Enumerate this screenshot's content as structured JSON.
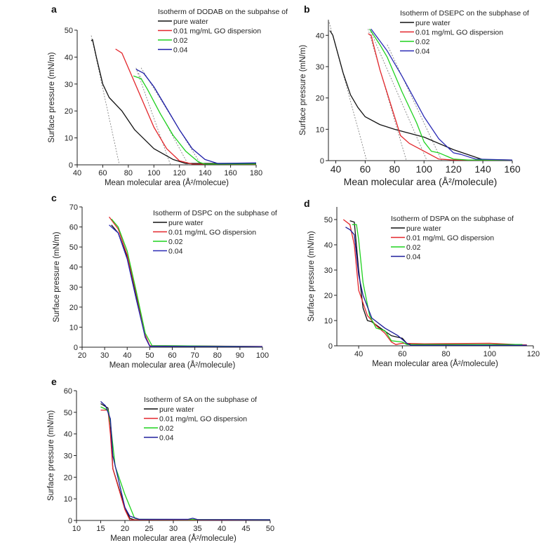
{
  "chart_data": [
    {
      "panel": "a",
      "type": "line",
      "legend_title": "Isotherm of DODAB on the subpahse of",
      "xlabel": "Mean molecular area (Å²/molecue)",
      "ylabel": "Surface pressure (mN/m)",
      "xlim": [
        40,
        180
      ],
      "ylim": [
        0,
        50
      ],
      "xticks": [
        40,
        60,
        80,
        100,
        120,
        140,
        160,
        180
      ],
      "yticks": [
        0,
        10,
        20,
        30,
        40,
        50
      ],
      "legend": "top-right",
      "series": [
        {
          "name": "pure water",
          "color": "#111111",
          "points": [
            [
              51,
              46
            ],
            [
              52,
              46.5
            ],
            [
              55,
              40
            ],
            [
              60,
              30
            ],
            [
              65,
              25
            ],
            [
              75,
              20
            ],
            [
              85,
              13
            ],
            [
              100,
              6
            ],
            [
              115,
              2
            ],
            [
              125,
              0.5
            ],
            [
              180,
              0.5
            ]
          ]
        },
        {
          "name": "0.01 mg/mL GO dispersion",
          "color": "#e3262b",
          "points": [
            [
              70,
              43
            ],
            [
              75,
              41.5
            ],
            [
              80,
              36
            ],
            [
              90,
              25
            ],
            [
              100,
              14
            ],
            [
              110,
              6
            ],
            [
              120,
              1.5
            ],
            [
              130,
              0.3
            ],
            [
              180,
              0.2
            ]
          ]
        },
        {
          "name": "0.02",
          "color": "#1fd21f",
          "points": [
            [
              84,
              33
            ],
            [
              90,
              32
            ],
            [
              95,
              28
            ],
            [
              105,
              19
            ],
            [
              115,
              11
            ],
            [
              125,
              5
            ],
            [
              135,
              1
            ],
            [
              140,
              0.3
            ],
            [
              180,
              0.3
            ]
          ]
        },
        {
          "name": "0.04",
          "color": "#1c1ca8",
          "points": [
            [
              86,
              35.5
            ],
            [
              92,
              34
            ],
            [
              100,
              29
            ],
            [
              110,
              21
            ],
            [
              120,
              13
            ],
            [
              130,
              6
            ],
            [
              140,
              2
            ],
            [
              150,
              0.5
            ],
            [
              180,
              0.7
            ]
          ]
        }
      ],
      "extrapolations": [
        [
          [
            51,
            48
          ],
          [
            73,
            0
          ]
        ],
        [
          [
            86,
            36
          ],
          [
            113,
            0
          ]
        ],
        [
          [
            88,
            34
          ],
          [
            127,
            0
          ]
        ],
        [
          [
            90,
            36
          ],
          [
            137,
            0
          ]
        ]
      ]
    },
    {
      "panel": "b",
      "type": "line",
      "legend_title": "Isotherm of DSEPC on the subphase of",
      "xlabel": "Mean molecular area (Å²/molecule)",
      "ylabel": "Surface pressure (mN/m)",
      "xlim": [
        35,
        160
      ],
      "ylim": [
        0,
        45
      ],
      "xticks": [
        40,
        60,
        80,
        100,
        120,
        140,
        160
      ],
      "yticks": [
        0,
        10,
        20,
        30,
        40
      ],
      "legend": "top-right",
      "series": [
        {
          "name": "pure water",
          "color": "#111111",
          "points": [
            [
              36,
              41.5
            ],
            [
              38,
              40
            ],
            [
              45,
              28
            ],
            [
              50,
              21
            ],
            [
              55,
              17
            ],
            [
              60,
              14
            ],
            [
              70,
              11.5
            ],
            [
              80,
              10
            ],
            [
              100,
              7.5
            ],
            [
              120,
              3.5
            ],
            [
              140,
              0.3
            ],
            [
              160,
              0.2
            ]
          ]
        },
        {
          "name": "0.01 mg/mL GO dispersion",
          "color": "#e3262b",
          "points": [
            [
              62,
              40.5
            ],
            [
              64,
              40
            ],
            [
              70,
              29
            ],
            [
              80,
              14
            ],
            [
              84,
              8
            ],
            [
              90,
              5.5
            ],
            [
              100,
              3
            ],
            [
              110,
              0.5
            ],
            [
              120,
              0.2
            ],
            [
              160,
              0.2
            ]
          ]
        },
        {
          "name": "0.02",
          "color": "#1fd21f",
          "points": [
            [
              63,
              42
            ],
            [
              70,
              37
            ],
            [
              75,
              33
            ],
            [
              85,
              22
            ],
            [
              95,
              12
            ],
            [
              100,
              6
            ],
            [
              105,
              3
            ],
            [
              110,
              2.5
            ],
            [
              120,
              0.5
            ],
            [
              130,
              0.2
            ],
            [
              160,
              0.2
            ]
          ]
        },
        {
          "name": "0.04",
          "color": "#2a2ab5",
          "points": [
            [
              64,
              42
            ],
            [
              75,
              35
            ],
            [
              85,
              27
            ],
            [
              100,
              14
            ],
            [
              110,
              7
            ],
            [
              120,
              2.5
            ],
            [
              125,
              2
            ],
            [
              135,
              0.5
            ],
            [
              160,
              0.2
            ]
          ]
        }
      ],
      "extrapolations": [
        [
          [
            35,
            45
          ],
          [
            61,
            0
          ]
        ],
        [
          [
            62,
            42
          ],
          [
            88,
            0
          ]
        ],
        [
          [
            63,
            42
          ],
          [
            102,
            0
          ]
        ],
        [
          [
            75,
            37
          ],
          [
            112,
            0
          ]
        ]
      ]
    },
    {
      "panel": "c",
      "type": "line",
      "legend_title": "Isotherm of DSPC on the subphase of",
      "xlabel": "Mean molecular area (Å²/molecule)",
      "ylabel": "Surface pressure (mN/m)",
      "xlim": [
        20,
        100
      ],
      "ylim": [
        0,
        70
      ],
      "xticks": [
        20,
        30,
        40,
        50,
        60,
        70,
        80,
        90,
        100
      ],
      "yticks": [
        0,
        10,
        20,
        30,
        40,
        50,
        60,
        70
      ],
      "legend": "top-right",
      "series": [
        {
          "name": "pure water",
          "color": "#111111",
          "points": [
            [
              33,
              61
            ],
            [
              36,
              57
            ],
            [
              40,
              45
            ],
            [
              44,
              25
            ],
            [
              48,
              5
            ],
            [
              50,
              0.5
            ],
            [
              100,
              0.3
            ]
          ]
        },
        {
          "name": "0.01 mg/mL GO dispersion",
          "color": "#e3262b",
          "points": [
            [
              32,
              65
            ],
            [
              36,
              59
            ],
            [
              40,
              46
            ],
            [
              44,
              27
            ],
            [
              48,
              6
            ],
            [
              50,
              0.8
            ],
            [
              100,
              0.4
            ]
          ]
        },
        {
          "name": "0.02",
          "color": "#1fd21f",
          "points": [
            [
              33,
              64
            ],
            [
              36,
              60
            ],
            [
              40,
              48
            ],
            [
              44,
              28
            ],
            [
              48,
              7
            ],
            [
              51,
              0.8
            ],
            [
              100,
              0.3
            ]
          ]
        },
        {
          "name": "0.04",
          "color": "#2a2ab5",
          "points": [
            [
              32,
              61
            ],
            [
              36,
              57
            ],
            [
              40,
              44
            ],
            [
              44,
              24
            ],
            [
              48,
              5
            ],
            [
              50,
              0.5
            ],
            [
              100,
              0.3
            ]
          ]
        }
      ],
      "extrapolations": []
    },
    {
      "panel": "d",
      "type": "line",
      "legend_title": "Isotherm of DSPA on the subphase of",
      "xlabel": "Mean molecular area (Å²/molecule)",
      "ylabel": "Surface pressure (mN/m)",
      "xlim": [
        30,
        120
      ],
      "ylim": [
        0,
        55
      ],
      "xticks": [
        40,
        60,
        80,
        100,
        120
      ],
      "yticks": [
        0,
        10,
        20,
        30,
        40,
        50
      ],
      "legend": "top-right",
      "series": [
        {
          "name": "pure water",
          "color": "#111111",
          "points": [
            [
              36,
              49.5
            ],
            [
              38,
              49
            ],
            [
              40,
              30
            ],
            [
              42,
              15
            ],
            [
              44,
              10
            ],
            [
              46,
              9.5
            ],
            [
              50,
              7
            ],
            [
              55,
              4
            ],
            [
              60,
              3
            ],
            [
              62,
              1
            ],
            [
              65,
              0.3
            ],
            [
              117,
              0.3
            ]
          ]
        },
        {
          "name": "0.01 mg/mL GO dispersion",
          "color": "#e3262b",
          "points": [
            [
              33,
              50
            ],
            [
              36,
              48
            ],
            [
              38,
              40
            ],
            [
              40,
              22
            ],
            [
              44,
              12
            ],
            [
              48,
              8
            ],
            [
              52,
              5
            ],
            [
              55,
              1.5
            ],
            [
              57,
              0.5
            ],
            [
              60,
              1
            ],
            [
              70,
              0.8
            ],
            [
              100,
              1
            ],
            [
              117,
              0.3
            ]
          ]
        },
        {
          "name": "0.02",
          "color": "#1fd21f",
          "points": [
            [
              37,
              48
            ],
            [
              39,
              48
            ],
            [
              40,
              42
            ],
            [
              42,
              25
            ],
            [
              45,
              12
            ],
            [
              48,
              7
            ],
            [
              52,
              6
            ],
            [
              55,
              2
            ],
            [
              60,
              1.5
            ],
            [
              62,
              0.5
            ],
            [
              115,
              0.5
            ]
          ]
        },
        {
          "name": "0.04",
          "color": "#1c1c9a",
          "points": [
            [
              34,
              47
            ],
            [
              36,
              46
            ],
            [
              38,
              44
            ],
            [
              40,
              28
            ],
            [
              42,
              20
            ],
            [
              46,
              11
            ],
            [
              52,
              7
            ],
            [
              58,
              4
            ],
            [
              62,
              1
            ],
            [
              64,
              0.2
            ],
            [
              117,
              0.2
            ]
          ]
        }
      ],
      "extrapolations": []
    },
    {
      "panel": "e",
      "type": "line",
      "legend_title": "Isotherm of SA on the subphase of",
      "xlabel": "Mean molecular area (Å²/molecule)",
      "ylabel": "Surface pressure (mN/m)",
      "xlim": [
        10,
        50
      ],
      "ylim": [
        0,
        60
      ],
      "xticks": [
        10,
        15,
        20,
        25,
        30,
        35,
        40,
        45,
        50
      ],
      "yticks": [
        0,
        10,
        20,
        30,
        40,
        50,
        60
      ],
      "legend": "top-right",
      "series": [
        {
          "name": "pure water",
          "color": "#111111",
          "points": [
            [
              15,
              54
            ],
            [
              16.5,
              52
            ],
            [
              17,
              45
            ],
            [
              17.5,
              24
            ],
            [
              20,
              6
            ],
            [
              21,
              1
            ],
            [
              22,
              0.3
            ],
            [
              50,
              0.3
            ]
          ]
        },
        {
          "name": "0.01 mg/mL GO dispersion",
          "color": "#e3262b",
          "points": [
            [
              15,
              51
            ],
            [
              16.5,
              51
            ],
            [
              17,
              40
            ],
            [
              17.5,
              24
            ],
            [
              20,
              5
            ],
            [
              21,
              0.3
            ],
            [
              50,
              0.2
            ]
          ]
        },
        {
          "name": "0.02",
          "color": "#1fd21f",
          "points": [
            [
              15,
              52.5
            ],
            [
              16.5,
              51
            ],
            [
              17,
              45
            ],
            [
              18,
              25
            ],
            [
              20,
              12
            ],
            [
              22,
              1
            ],
            [
              23,
              0.5
            ],
            [
              50,
              0.3
            ]
          ]
        },
        {
          "name": "0.04",
          "color": "#1c1c9a",
          "points": [
            [
              15,
              55
            ],
            [
              16,
              53
            ],
            [
              17,
              47
            ],
            [
              17.5,
              30
            ],
            [
              20,
              6
            ],
            [
              21,
              2
            ],
            [
              23,
              0.5
            ],
            [
              33,
              0.5
            ],
            [
              34,
              1
            ],
            [
              35,
              0.4
            ],
            [
              50,
              0.3
            ]
          ]
        }
      ],
      "extrapolations": []
    }
  ]
}
